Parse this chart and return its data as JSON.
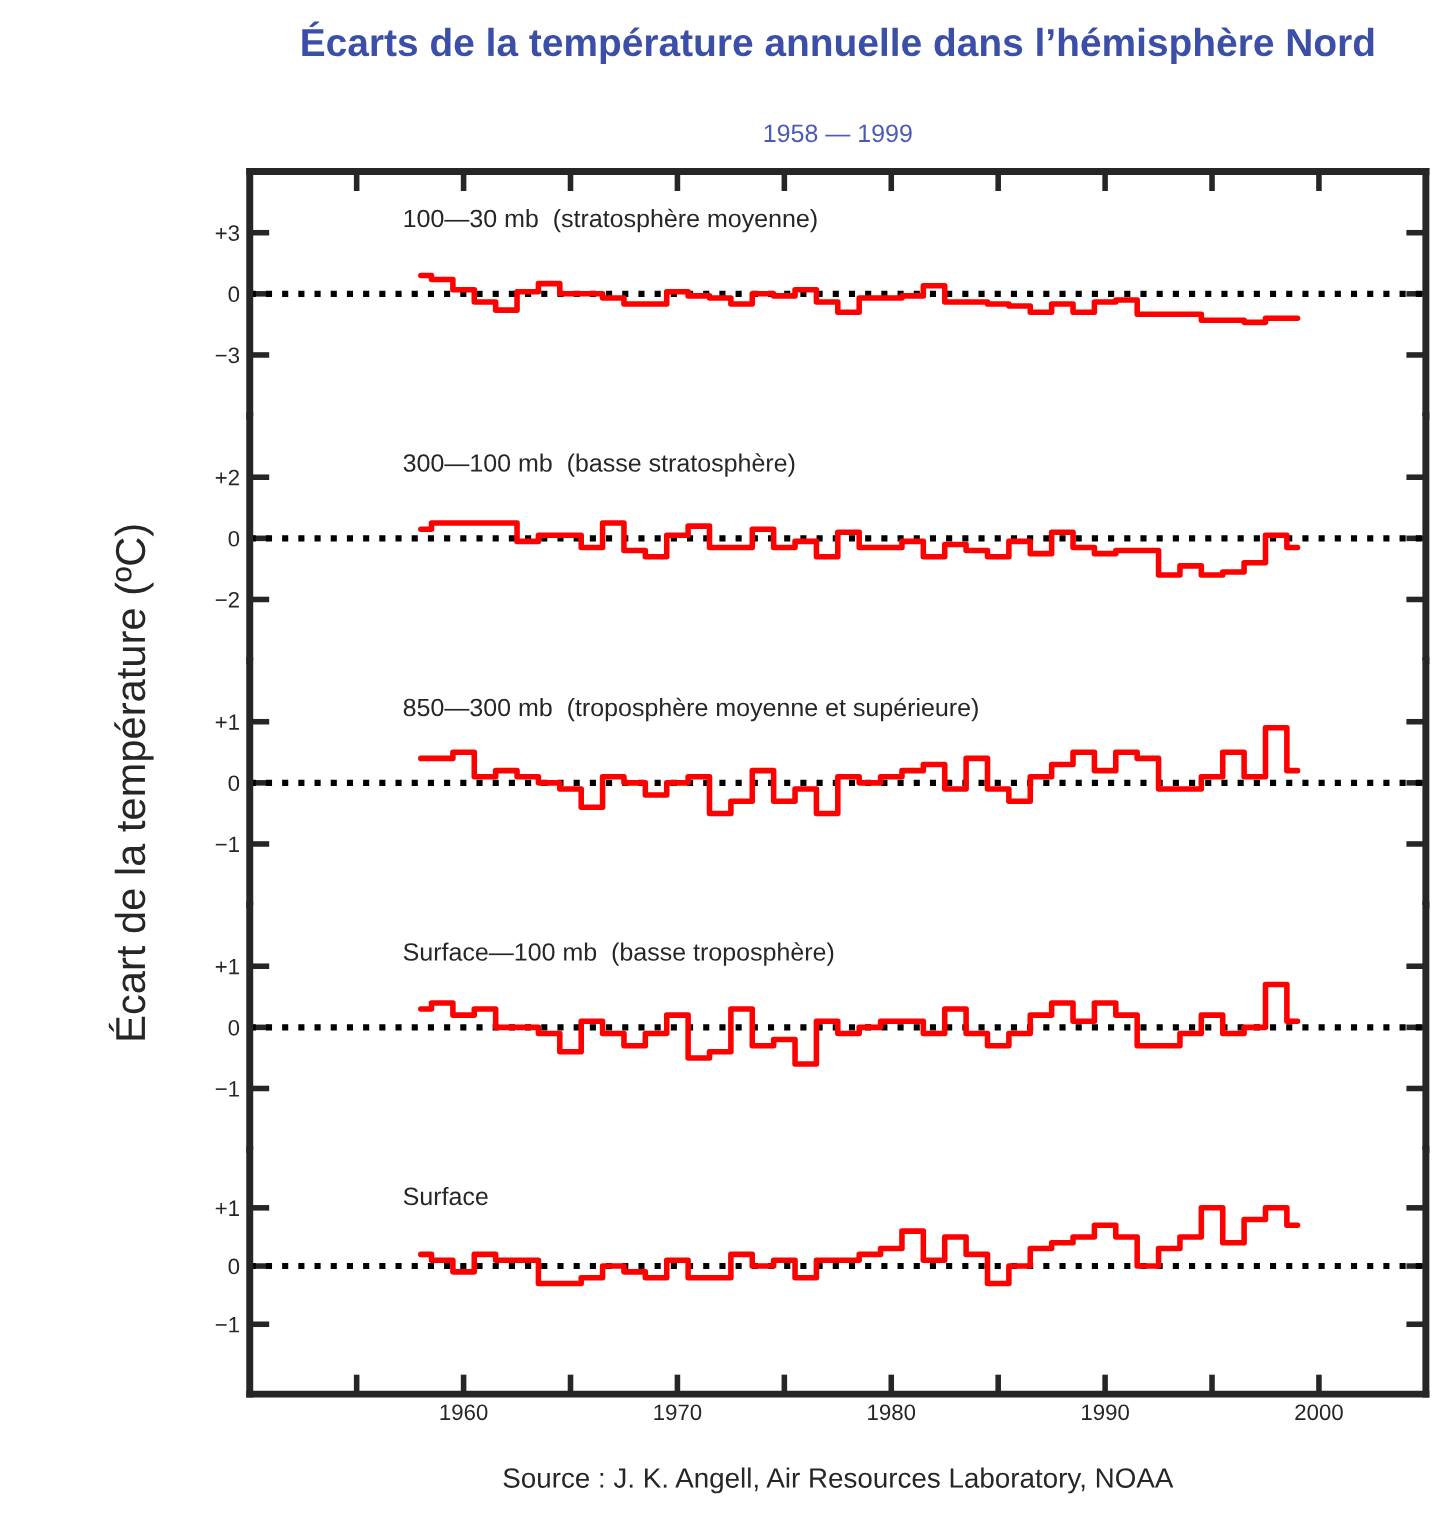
{
  "chart_data": [
    {
      "type": "step",
      "title": "Écarts de la température annuelle dans l’hémisphère Nord",
      "subtitle": "1958 — 1999",
      "annotations": [
        "100—30 mb  (stratosphère moyenne)"
      ],
      "x": [
        1958,
        1959,
        1960,
        1961,
        1962,
        1963,
        1964,
        1965,
        1966,
        1967,
        1968,
        1969,
        1970,
        1971,
        1972,
        1973,
        1974,
        1975,
        1976,
        1977,
        1978,
        1979,
        1980,
        1981,
        1982,
        1983,
        1984,
        1985,
        1986,
        1987,
        1988,
        1989,
        1990,
        1991,
        1992,
        1993,
        1994,
        1995,
        1996,
        1997,
        1998,
        1999
      ],
      "series": [
        {
          "color": "#ff0000",
          "values": [
            0.9,
            0.7,
            0.2,
            -0.4,
            -0.8,
            0.1,
            0.5,
            0.0,
            0.0,
            -0.2,
            -0.5,
            -0.5,
            0.1,
            -0.1,
            -0.2,
            -0.5,
            0.0,
            -0.1,
            0.2,
            -0.4,
            -0.9,
            -0.2,
            -0.2,
            -0.1,
            0.4,
            -0.4,
            -0.4,
            -0.5,
            -0.6,
            -0.9,
            -0.5,
            -0.9,
            -0.4,
            -0.3,
            -1.0,
            -1.0,
            -1.0,
            -1.3,
            -1.3,
            -1.4,
            -1.2,
            -1.2
          ]
        }
      ],
      "xlim": [
        1950,
        2005
      ],
      "xticks": [
        {
          "value": 1955,
          "label": null
        },
        {
          "value": 1960,
          "label": null
        },
        {
          "value": 1965,
          "label": null
        },
        {
          "value": 1970,
          "label": null
        },
        {
          "value": 1975,
          "label": null
        },
        {
          "value": 1980,
          "label": null
        },
        {
          "value": 1985,
          "label": null
        },
        {
          "value": 1990,
          "label": null
        },
        {
          "value": 1995,
          "label": null
        },
        {
          "value": 2000,
          "label": null
        }
      ],
      "ylim": [
        -6,
        6
      ],
      "yticks": [
        {
          "value": 3,
          "label": "+3"
        },
        0,
        {
          "value": -3,
          "label": "−3"
        }
      ],
      "ref_lines": [
        {
          "axis": "y",
          "value": 0,
          "color": "#000000",
          "line_style": "dotted"
        }
      ],
      "tick_labels": "y",
      "grid": false,
      "legend": false
    },
    {
      "type": "step",
      "annotations": [
        "300—100 mb  (basse stratosphère)"
      ],
      "x": [
        1958,
        1959,
        1960,
        1961,
        1962,
        1963,
        1964,
        1965,
        1966,
        1967,
        1968,
        1969,
        1970,
        1971,
        1972,
        1973,
        1974,
        1975,
        1976,
        1977,
        1978,
        1979,
        1980,
        1981,
        1982,
        1983,
        1984,
        1985,
        1986,
        1987,
        1988,
        1989,
        1990,
        1991,
        1992,
        1993,
        1994,
        1995,
        1996,
        1997,
        1998,
        1999
      ],
      "series": [
        {
          "color": "#ff0000",
          "values": [
            0.3,
            0.5,
            0.5,
            0.5,
            0.5,
            -0.1,
            0.1,
            0.1,
            -0.3,
            0.5,
            -0.4,
            -0.6,
            0.1,
            0.4,
            -0.3,
            -0.3,
            0.3,
            -0.3,
            -0.1,
            -0.6,
            0.2,
            -0.3,
            -0.3,
            -0.1,
            -0.6,
            -0.2,
            -0.4,
            -0.6,
            -0.1,
            -0.5,
            0.2,
            -0.3,
            -0.5,
            -0.4,
            -0.4,
            -1.2,
            -0.9,
            -1.2,
            -1.1,
            -0.8,
            0.1,
            -0.3
          ]
        }
      ],
      "xlim": [
        1950,
        2005
      ],
      "ylim": [
        -4,
        4
      ],
      "yticks": [
        {
          "value": 2,
          "label": "+2"
        },
        0,
        {
          "value": -2,
          "label": "−2"
        }
      ],
      "ref_lines": [
        {
          "axis": "y",
          "value": 0,
          "color": "#000000",
          "line_style": "dotted"
        }
      ],
      "tick_labels": "y",
      "grid": false,
      "legend": false
    },
    {
      "type": "step",
      "ylabel": "Écart de la température (ºC)",
      "annotations": [
        "850—300 mb  (troposphère moyenne et supérieure)"
      ],
      "x": [
        1958,
        1959,
        1960,
        1961,
        1962,
        1963,
        1964,
        1965,
        1966,
        1967,
        1968,
        1969,
        1970,
        1971,
        1972,
        1973,
        1974,
        1975,
        1976,
        1977,
        1978,
        1979,
        1980,
        1981,
        1982,
        1983,
        1984,
        1985,
        1986,
        1987,
        1988,
        1989,
        1990,
        1991,
        1992,
        1993,
        1994,
        1995,
        1996,
        1997,
        1998,
        1999
      ],
      "series": [
        {
          "color": "#ff0000",
          "values": [
            0.4,
            0.4,
            0.5,
            0.1,
            0.2,
            0.1,
            0.0,
            -0.1,
            -0.4,
            0.1,
            0.0,
            -0.2,
            0.0,
            0.1,
            -0.5,
            -0.3,
            0.2,
            -0.3,
            -0.1,
            -0.5,
            0.1,
            0.0,
            0.1,
            0.2,
            0.3,
            -0.1,
            0.4,
            -0.1,
            -0.3,
            0.1,
            0.3,
            0.5,
            0.2,
            0.5,
            0.4,
            -0.1,
            -0.1,
            0.1,
            0.5,
            0.1,
            0.9,
            0.2
          ]
        }
      ],
      "xlim": [
        1950,
        2005
      ],
      "ylim": [
        -2,
        2
      ],
      "yticks": [
        {
          "value": 1,
          "label": "+1"
        },
        0,
        {
          "value": -1,
          "label": "−1"
        }
      ],
      "ref_lines": [
        {
          "axis": "y",
          "value": 0,
          "color": "#000000",
          "line_style": "dotted"
        }
      ],
      "tick_labels": "y",
      "grid": false,
      "legend": false
    },
    {
      "type": "step",
      "annotations": [
        "Surface—100 mb  (basse troposphère)"
      ],
      "x": [
        1958,
        1959,
        1960,
        1961,
        1962,
        1963,
        1964,
        1965,
        1966,
        1967,
        1968,
        1969,
        1970,
        1971,
        1972,
        1973,
        1974,
        1975,
        1976,
        1977,
        1978,
        1979,
        1980,
        1981,
        1982,
        1983,
        1984,
        1985,
        1986,
        1987,
        1988,
        1989,
        1990,
        1991,
        1992,
        1993,
        1994,
        1995,
        1996,
        1997,
        1998,
        1999
      ],
      "series": [
        {
          "color": "#ff0000",
          "values": [
            0.3,
            0.4,
            0.2,
            0.3,
            0.0,
            0.0,
            -0.1,
            -0.4,
            0.1,
            -0.1,
            -0.3,
            -0.1,
            0.2,
            -0.5,
            -0.4,
            0.3,
            -0.3,
            -0.2,
            -0.6,
            0.1,
            -0.1,
            0.0,
            0.1,
            0.1,
            -0.1,
            0.3,
            -0.1,
            -0.3,
            -0.1,
            0.2,
            0.4,
            0.1,
            0.4,
            0.2,
            -0.3,
            -0.3,
            -0.1,
            0.2,
            -0.1,
            0.0,
            0.7,
            0.1
          ]
        }
      ],
      "xlim": [
        1950,
        2005
      ],
      "ylim": [
        -2,
        2
      ],
      "yticks": [
        {
          "value": 1,
          "label": "+1"
        },
        0,
        {
          "value": -1,
          "label": "−1"
        }
      ],
      "ref_lines": [
        {
          "axis": "y",
          "value": 0,
          "color": "#000000",
          "line_style": "dotted"
        }
      ],
      "tick_labels": "y",
      "grid": false,
      "legend": false
    },
    {
      "type": "step",
      "annotations": [
        "Surface",
        "Source : J. K. Angell, Air Resources Laboratory, NOAA"
      ],
      "x": [
        1958,
        1959,
        1960,
        1961,
        1962,
        1963,
        1964,
        1965,
        1966,
        1967,
        1968,
        1969,
        1970,
        1971,
        1972,
        1973,
        1974,
        1975,
        1976,
        1977,
        1978,
        1979,
        1980,
        1981,
        1982,
        1983,
        1984,
        1985,
        1986,
        1987,
        1988,
        1989,
        1990,
        1991,
        1992,
        1993,
        1994,
        1995,
        1996,
        1997,
        1998,
        1999
      ],
      "series": [
        {
          "color": "#ff0000",
          "values": [
            0.2,
            0.1,
            -0.1,
            0.2,
            0.1,
            0.1,
            -0.3,
            -0.3,
            -0.2,
            0.0,
            -0.1,
            -0.2,
            0.1,
            -0.2,
            -0.2,
            0.2,
            0.0,
            0.1,
            -0.2,
            0.1,
            0.1,
            0.2,
            0.3,
            0.6,
            0.1,
            0.5,
            0.2,
            -0.3,
            0.0,
            0.3,
            0.4,
            0.5,
            0.7,
            0.5,
            0.0,
            0.3,
            0.5,
            1.0,
            0.4,
            0.8,
            1.0,
            0.7
          ]
        }
      ],
      "xlim": [
        1950,
        2005
      ],
      "xticks": [
        {
          "value": 1955,
          "label": null
        },
        1960,
        {
          "value": 1965,
          "label": null
        },
        1970,
        {
          "value": 1975,
          "label": null
        },
        1980,
        {
          "value": 1985,
          "label": null
        },
        1990,
        {
          "value": 1995,
          "label": null
        },
        2000
      ],
      "ylim": [
        -2.2,
        2
      ],
      "yticks": [
        {
          "value": 1,
          "label": "+1"
        },
        0,
        {
          "value": -1,
          "label": "−1"
        }
      ],
      "ref_lines": [
        {
          "axis": "y",
          "value": 0,
          "color": "#000000",
          "line_style": "dotted"
        }
      ],
      "grid": false,
      "legend": false
    }
  ]
}
